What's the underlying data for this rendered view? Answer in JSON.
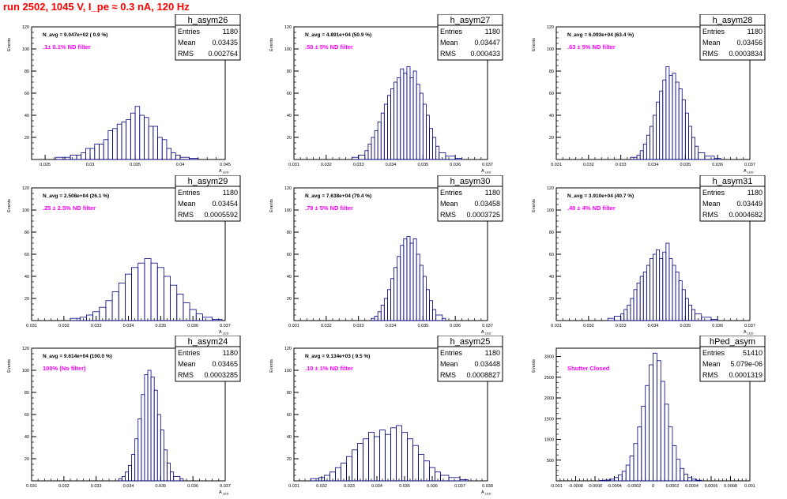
{
  "run_title": "run 2502,  1045 V, I_pe ≈ 0.3 nA, 120 Hz",
  "colors": {
    "histogram": "#000080",
    "filter_label": "#ff00ff",
    "title": "#ff0000"
  },
  "stat_labels": {
    "entries": "Entries",
    "mean": "Mean",
    "rms": "RMS"
  },
  "ylabel": "Events",
  "chart_data": [
    {
      "type": "bar",
      "name": "h_asym26",
      "navg": "N_avg = 9.047e+02 ( 0.9 %)",
      "filter": ".1± 0.1% ND filter",
      "entries": "1180",
      "mean": "0.03435",
      "rms": "0.002764",
      "xlabel": "A_LED",
      "xlim": [
        0.0235,
        0.045
      ],
      "ylim": [
        0,
        120
      ],
      "xticks": [
        "0.025",
        "0.03",
        "0.035",
        "0.04",
        "0.045"
      ],
      "xtick_values": [
        0.025,
        0.03,
        0.035,
        0.04,
        0.045
      ],
      "yticks": [
        "20",
        "40",
        "60",
        "80",
        "100",
        "120"
      ],
      "ytick_values": [
        20,
        40,
        60,
        80,
        100,
        120
      ],
      "bins": [
        [
          0.0262,
          2
        ],
        [
          0.0272,
          2
        ],
        [
          0.0278,
          4
        ],
        [
          0.0285,
          4
        ],
        [
          0.029,
          6
        ],
        [
          0.0295,
          10
        ],
        [
          0.03,
          10
        ],
        [
          0.0305,
          14
        ],
        [
          0.031,
          14
        ],
        [
          0.0315,
          18
        ],
        [
          0.032,
          26
        ],
        [
          0.0325,
          28
        ],
        [
          0.033,
          32
        ],
        [
          0.0335,
          34
        ],
        [
          0.034,
          36
        ],
        [
          0.0345,
          42
        ],
        [
          0.035,
          48
        ],
        [
          0.0355,
          40
        ],
        [
          0.036,
          38
        ],
        [
          0.0365,
          30
        ],
        [
          0.037,
          30
        ],
        [
          0.0375,
          20
        ],
        [
          0.038,
          18
        ],
        [
          0.0385,
          10
        ],
        [
          0.039,
          6
        ],
        [
          0.0395,
          4
        ],
        [
          0.04,
          2
        ],
        [
          0.041,
          1
        ]
      ]
    },
    {
      "type": "bar",
      "name": "h_asym27",
      "navg": "N_avg = 4.891e+04 (50.9 %)",
      "filter": ".50 ± 5% ND filter",
      "entries": "1180",
      "mean": "0.03447",
      "rms": "0.000433",
      "xlabel": "A_LED",
      "xlim": [
        0.031,
        0.037
      ],
      "ylim": [
        0,
        120
      ],
      "xticks": [
        "0.031",
        "0.032",
        "0.033",
        "0.034",
        "0.035",
        "0.036",
        "0.037"
      ],
      "xtick_values": [
        0.031,
        0.032,
        0.033,
        0.034,
        0.035,
        0.036,
        0.037
      ],
      "yticks": [
        "20",
        "40",
        "60",
        "80",
        "100",
        "120"
      ],
      "ytick_values": [
        20,
        40,
        60,
        80,
        100,
        120
      ],
      "bins": [
        [
          0.0328,
          2
        ],
        [
          0.033,
          4
        ],
        [
          0.0332,
          8
        ],
        [
          0.0333,
          14
        ],
        [
          0.0334,
          20
        ],
        [
          0.0335,
          26
        ],
        [
          0.0336,
          34
        ],
        [
          0.0337,
          42
        ],
        [
          0.0338,
          50
        ],
        [
          0.0339,
          58
        ],
        [
          0.034,
          64
        ],
        [
          0.0341,
          70
        ],
        [
          0.0342,
          74
        ],
        [
          0.0343,
          82
        ],
        [
          0.0344,
          78
        ],
        [
          0.0345,
          84
        ],
        [
          0.0346,
          74
        ],
        [
          0.0347,
          80
        ],
        [
          0.0348,
          68
        ],
        [
          0.0349,
          60
        ],
        [
          0.035,
          50
        ],
        [
          0.0351,
          40
        ],
        [
          0.0352,
          28
        ],
        [
          0.0353,
          20
        ],
        [
          0.0354,
          12
        ],
        [
          0.0355,
          6
        ],
        [
          0.0357,
          3
        ],
        [
          0.036,
          1
        ]
      ]
    },
    {
      "type": "bar",
      "name": "h_asym28",
      "navg": "N_avg = 6.093e+04 (63.4 %)",
      "filter": ".63 ± 5% ND filter",
      "entries": "1180",
      "mean": "0.03456",
      "rms": "0.0003834",
      "xlabel": "A_LED",
      "xlim": [
        0.031,
        0.037
      ],
      "ylim": [
        0,
        120
      ],
      "xticks": [
        "0.031",
        "0.032",
        "0.033",
        "0.034",
        "0.035",
        "0.036",
        "0.037"
      ],
      "xtick_values": [
        0.031,
        0.032,
        0.033,
        0.034,
        0.035,
        0.036,
        0.037
      ],
      "yticks": [
        "20",
        "40",
        "60",
        "80",
        "100",
        "120"
      ],
      "ytick_values": [
        20,
        40,
        60,
        80,
        100,
        120
      ],
      "bins": [
        [
          0.0333,
          2
        ],
        [
          0.0335,
          4
        ],
        [
          0.0336,
          8
        ],
        [
          0.0337,
          14
        ],
        [
          0.0338,
          22
        ],
        [
          0.0339,
          30
        ],
        [
          0.034,
          40
        ],
        [
          0.0341,
          52
        ],
        [
          0.0342,
          62
        ],
        [
          0.0343,
          72
        ],
        [
          0.0344,
          84
        ],
        [
          0.0345,
          76
        ],
        [
          0.0346,
          78
        ],
        [
          0.0347,
          70
        ],
        [
          0.0348,
          64
        ],
        [
          0.0349,
          54
        ],
        [
          0.035,
          42
        ],
        [
          0.0351,
          30
        ],
        [
          0.0352,
          20
        ],
        [
          0.0353,
          12
        ],
        [
          0.0354,
          6
        ],
        [
          0.0356,
          3
        ],
        [
          0.0359,
          1
        ]
      ]
    },
    {
      "type": "bar",
      "name": "h_asym29",
      "navg": "N_avg = 2.508e+04 (26.1 %)",
      "filter": ".25 ± 2.5% ND filter",
      "entries": "1180",
      "mean": "0.03454",
      "rms": "0.0005592",
      "xlabel": "A_LED",
      "xlim": [
        0.031,
        0.037
      ],
      "ylim": [
        0,
        120
      ],
      "xticks": [
        "0.031",
        "0.032",
        "0.033",
        "0.034",
        "0.035",
        "0.036",
        "0.037"
      ],
      "xtick_values": [
        0.031,
        0.032,
        0.033,
        0.034,
        0.035,
        0.036,
        0.037
      ],
      "yticks": [
        "20",
        "40",
        "60",
        "80",
        "100",
        "120"
      ],
      "ytick_values": [
        20,
        40,
        60,
        80,
        100,
        120
      ],
      "bins": [
        [
          0.0322,
          2
        ],
        [
          0.0325,
          3
        ],
        [
          0.0327,
          5
        ],
        [
          0.0329,
          8
        ],
        [
          0.0331,
          12
        ],
        [
          0.0333,
          18
        ],
        [
          0.0335,
          26
        ],
        [
          0.0337,
          34
        ],
        [
          0.0339,
          42
        ],
        [
          0.0341,
          48
        ],
        [
          0.0343,
          52
        ],
        [
          0.0345,
          56
        ],
        [
          0.0347,
          52
        ],
        [
          0.0349,
          48
        ],
        [
          0.0351,
          40
        ],
        [
          0.0353,
          32
        ],
        [
          0.0355,
          24
        ],
        [
          0.0357,
          16
        ],
        [
          0.0359,
          10
        ],
        [
          0.0361,
          6
        ],
        [
          0.0363,
          3
        ],
        [
          0.0366,
          1
        ]
      ]
    },
    {
      "type": "bar",
      "name": "h_asym30",
      "navg": "N_avg = 7.638e+04 (79.4 %)",
      "filter": ".79 ± 5% ND filter",
      "entries": "1180",
      "mean": "0.03458",
      "rms": "0.0003725",
      "xlabel": "A_LED",
      "xlim": [
        0.031,
        0.037
      ],
      "ylim": [
        0,
        120
      ],
      "xticks": [
        "0.031",
        "0.032",
        "0.033",
        "0.034",
        "0.035",
        "0.036",
        "0.037"
      ],
      "xtick_values": [
        0.031,
        0.032,
        0.033,
        0.034,
        0.035,
        0.036,
        0.037
      ],
      "yticks": [
        "20",
        "40",
        "60",
        "80",
        "100",
        "120"
      ],
      "ytick_values": [
        20,
        40,
        60,
        80,
        100,
        120
      ],
      "bins": [
        [
          0.0334,
          2
        ],
        [
          0.0335,
          4
        ],
        [
          0.0336,
          8
        ],
        [
          0.0337,
          14
        ],
        [
          0.0338,
          20
        ],
        [
          0.0339,
          28
        ],
        [
          0.034,
          38
        ],
        [
          0.0341,
          48
        ],
        [
          0.0342,
          58
        ],
        [
          0.0343,
          68
        ],
        [
          0.0344,
          74
        ],
        [
          0.0345,
          76
        ],
        [
          0.0346,
          70
        ],
        [
          0.0347,
          74
        ],
        [
          0.0348,
          60
        ],
        [
          0.0349,
          50
        ],
        [
          0.035,
          40
        ],
        [
          0.0351,
          28
        ],
        [
          0.0352,
          18
        ],
        [
          0.0353,
          10
        ],
        [
          0.0354,
          5
        ],
        [
          0.0356,
          2
        ]
      ]
    },
    {
      "type": "bar",
      "name": "h_asym31",
      "navg": "N_avg = 3.910e+04 (40.7 %)",
      "filter": ".40 ± 4% ND filter",
      "entries": "1180",
      "mean": "0.03449",
      "rms": "0.0004682",
      "xlabel": "A_LED",
      "xlim": [
        0.031,
        0.037
      ],
      "ylim": [
        0,
        120
      ],
      "xticks": [
        "0.031",
        "0.032",
        "0.033",
        "0.034",
        "0.035",
        "0.036",
        "0.037"
      ],
      "xtick_values": [
        0.031,
        0.032,
        0.033,
        0.034,
        0.035,
        0.036,
        0.037
      ],
      "yticks": [
        "20",
        "40",
        "60",
        "80",
        "100",
        "120"
      ],
      "ytick_values": [
        20,
        40,
        60,
        80,
        100,
        120
      ],
      "bins": [
        [
          0.0326,
          2
        ],
        [
          0.0328,
          4
        ],
        [
          0.033,
          6
        ],
        [
          0.0331,
          10
        ],
        [
          0.0332,
          14
        ],
        [
          0.0333,
          20
        ],
        [
          0.0334,
          28
        ],
        [
          0.0335,
          34
        ],
        [
          0.0336,
          40
        ],
        [
          0.0337,
          44
        ],
        [
          0.0338,
          50
        ],
        [
          0.0339,
          56
        ],
        [
          0.034,
          60
        ],
        [
          0.0341,
          64
        ],
        [
          0.0342,
          56
        ],
        [
          0.0343,
          62
        ],
        [
          0.0344,
          70
        ],
        [
          0.0345,
          56
        ],
        [
          0.0346,
          50
        ],
        [
          0.0347,
          44
        ],
        [
          0.0348,
          36
        ],
        [
          0.0349,
          28
        ],
        [
          0.035,
          20
        ],
        [
          0.0351,
          14
        ],
        [
          0.0352,
          10
        ],
        [
          0.0353,
          6
        ],
        [
          0.0355,
          3
        ],
        [
          0.0358,
          1
        ]
      ]
    },
    {
      "type": "bar",
      "name": "h_asym24",
      "navg": "N_avg = 9.614e+04 (100.0 %)",
      "filter": "100% (No filter)",
      "entries": "1180",
      "mean": "0.03465",
      "rms": "0.0003285",
      "xlabel": "A_LED",
      "xlim": [
        0.031,
        0.037
      ],
      "ylim": [
        0,
        120
      ],
      "xticks": [
        "0.031",
        "0.032",
        "0.033",
        "0.034",
        "0.035",
        "0.036",
        "0.037"
      ],
      "xtick_values": [
        0.031,
        0.032,
        0.033,
        0.034,
        0.035,
        0.036,
        0.037
      ],
      "yticks": [
        "20",
        "40",
        "60",
        "80",
        "100",
        "120"
      ],
      "ytick_values": [
        20,
        40,
        60,
        80,
        100,
        120
      ],
      "bins": [
        [
          0.0337,
          2
        ],
        [
          0.0338,
          4
        ],
        [
          0.0339,
          8
        ],
        [
          0.034,
          14
        ],
        [
          0.0341,
          24
        ],
        [
          0.0342,
          38
        ],
        [
          0.0343,
          56
        ],
        [
          0.0344,
          78
        ],
        [
          0.0345,
          96
        ],
        [
          0.0346,
          100
        ],
        [
          0.0347,
          94
        ],
        [
          0.0348,
          82
        ],
        [
          0.0349,
          60
        ],
        [
          0.035,
          46
        ],
        [
          0.0351,
          28
        ],
        [
          0.0352,
          16
        ],
        [
          0.0353,
          8
        ],
        [
          0.0354,
          4
        ],
        [
          0.0356,
          2
        ]
      ]
    },
    {
      "type": "bar",
      "name": "h_asym25",
      "navg": "N_avg = 9.134e+03 ( 9.5 %)",
      "filter": ".10 ± 1% ND filter",
      "entries": "1180",
      "mean": "0.03448",
      "rms": "0.0008827",
      "xlabel": "A_LED",
      "xlim": [
        0.031,
        0.038
      ],
      "ylim": [
        0,
        120
      ],
      "xticks": [
        "0.031",
        "0.032",
        "0.033",
        "0.034",
        "0.035",
        "0.036",
        "0.037",
        "0.038"
      ],
      "xtick_values": [
        0.031,
        0.032,
        0.033,
        0.034,
        0.035,
        0.036,
        0.037,
        0.038
      ],
      "yticks": [
        "20",
        "40",
        "60",
        "80",
        "100",
        "120"
      ],
      "ytick_values": [
        20,
        40,
        60,
        80,
        100,
        120
      ],
      "bins": [
        [
          0.0316,
          2
        ],
        [
          0.0319,
          3
        ],
        [
          0.0321,
          5
        ],
        [
          0.0323,
          8
        ],
        [
          0.0325,
          12
        ],
        [
          0.0327,
          16
        ],
        [
          0.0329,
          22
        ],
        [
          0.0331,
          28
        ],
        [
          0.0333,
          34
        ],
        [
          0.0335,
          38
        ],
        [
          0.0337,
          44
        ],
        [
          0.0339,
          40
        ],
        [
          0.0341,
          46
        ],
        [
          0.0343,
          42
        ],
        [
          0.0345,
          48
        ],
        [
          0.0347,
          50
        ],
        [
          0.0349,
          44
        ],
        [
          0.0351,
          38
        ],
        [
          0.0353,
          32
        ],
        [
          0.0355,
          24
        ],
        [
          0.0357,
          18
        ],
        [
          0.0359,
          12
        ],
        [
          0.0361,
          8
        ],
        [
          0.0363,
          5
        ],
        [
          0.0366,
          3
        ],
        [
          0.037,
          1
        ]
      ]
    },
    {
      "type": "bar",
      "name": "hPed_asym",
      "navg": "",
      "filter": "Shutter Closed",
      "entries": "51410",
      "mean": "5.079e-06",
      "rms": "0.0001319",
      "xlabel": "",
      "xlim": [
        -0.001,
        0.001
      ],
      "ylim": [
        0,
        3200
      ],
      "xticks": [
        "-0.001",
        "-0.0008",
        "-0.0006",
        "-0.0004",
        "-0.0002",
        "0",
        "0.0002",
        "0.0004",
        "0.0006",
        "0.0008",
        "0.001"
      ],
      "xtick_values": [
        -0.001,
        -0.0008,
        -0.0006,
        -0.0004,
        -0.0002,
        0,
        0.0002,
        0.0004,
        0.0006,
        0.0008,
        0.001
      ],
      "yticks": [
        "500",
        "1000",
        "1500",
        "2000",
        "2500",
        "3000"
      ],
      "ytick_values": [
        500,
        1000,
        1500,
        2000,
        2500,
        3000
      ],
      "bins": [
        [
          -0.00055,
          10
        ],
        [
          -0.0005,
          20
        ],
        [
          -0.00045,
          40
        ],
        [
          -0.0004,
          80
        ],
        [
          -0.00036,
          140
        ],
        [
          -0.00032,
          230
        ],
        [
          -0.00028,
          380
        ],
        [
          -0.00024,
          600
        ],
        [
          -0.0002,
          900
        ],
        [
          -0.00016,
          1300
        ],
        [
          -0.00012,
          1800
        ],
        [
          -8e-05,
          2300
        ],
        [
          -4e-05,
          2800
        ],
        [
          0,
          3080
        ],
        [
          4e-05,
          2900
        ],
        [
          8e-05,
          2400
        ],
        [
          0.00012,
          1850
        ],
        [
          0.00016,
          1300
        ],
        [
          0.0002,
          850
        ],
        [
          0.00024,
          520
        ],
        [
          0.00028,
          300
        ],
        [
          0.00032,
          160
        ],
        [
          0.00036,
          80
        ],
        [
          0.0004,
          40
        ],
        [
          0.00045,
          15
        ]
      ]
    }
  ]
}
